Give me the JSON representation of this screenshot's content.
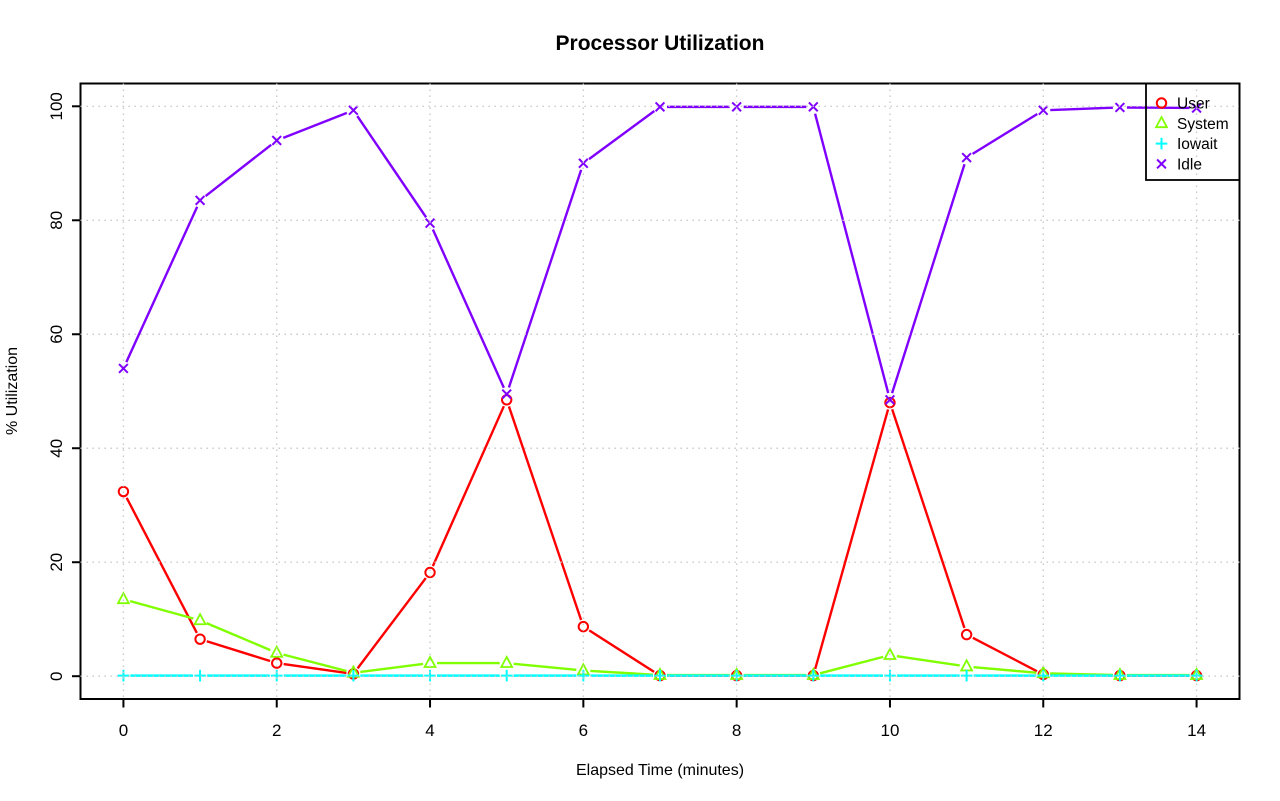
{
  "chart_data": {
    "type": "line",
    "title": "Processor Utilization",
    "xlabel": "Elapsed Time (minutes)",
    "ylabel": "% Utilization",
    "x": [
      0,
      1,
      2,
      3,
      4,
      5,
      6,
      7,
      8,
      9,
      10,
      11,
      12,
      13,
      14
    ],
    "series": [
      {
        "name": "User",
        "color": "#ff0000",
        "marker": "circle",
        "values": [
          32.4,
          6.5,
          2.3,
          0.4,
          18.2,
          48.5,
          8.7,
          0.1,
          0.1,
          0.1,
          48.0,
          7.3,
          0.3,
          0.1,
          0.1
        ]
      },
      {
        "name": "System",
        "color": "#80ff00",
        "marker": "triangle",
        "values": [
          13.5,
          9.8,
          4.1,
          0.6,
          2.3,
          2.3,
          1.0,
          0.2,
          0.2,
          0.2,
          3.7,
          1.7,
          0.5,
          0.2,
          0.2
        ]
      },
      {
        "name": "Iowait",
        "color": "#00ffff",
        "marker": "plus",
        "values": [
          0.1,
          0.1,
          0.1,
          0.1,
          0.1,
          0.1,
          0.1,
          0.1,
          0.1,
          0.1,
          0.1,
          0.1,
          0.1,
          0.1,
          0.1
        ]
      },
      {
        "name": "Idle",
        "color": "#8000ff",
        "marker": "x",
        "values": [
          54.0,
          83.5,
          94.0,
          99.3,
          79.5,
          49.5,
          90.0,
          99.9,
          99.9,
          99.9,
          48.5,
          91.0,
          99.3,
          99.8,
          99.7
        ]
      }
    ],
    "x_ticks": [
      0,
      2,
      4,
      6,
      8,
      10,
      12,
      14
    ],
    "y_ticks": [
      0,
      20,
      40,
      60,
      80,
      100
    ],
    "xlim": [
      0,
      14
    ],
    "ylim": [
      0,
      100
    ],
    "grid": "dotted",
    "grid_color": "#c6c6c6",
    "legend_position": "top-right",
    "legend": [
      "User",
      "System",
      "Iowait",
      "Idle"
    ]
  }
}
